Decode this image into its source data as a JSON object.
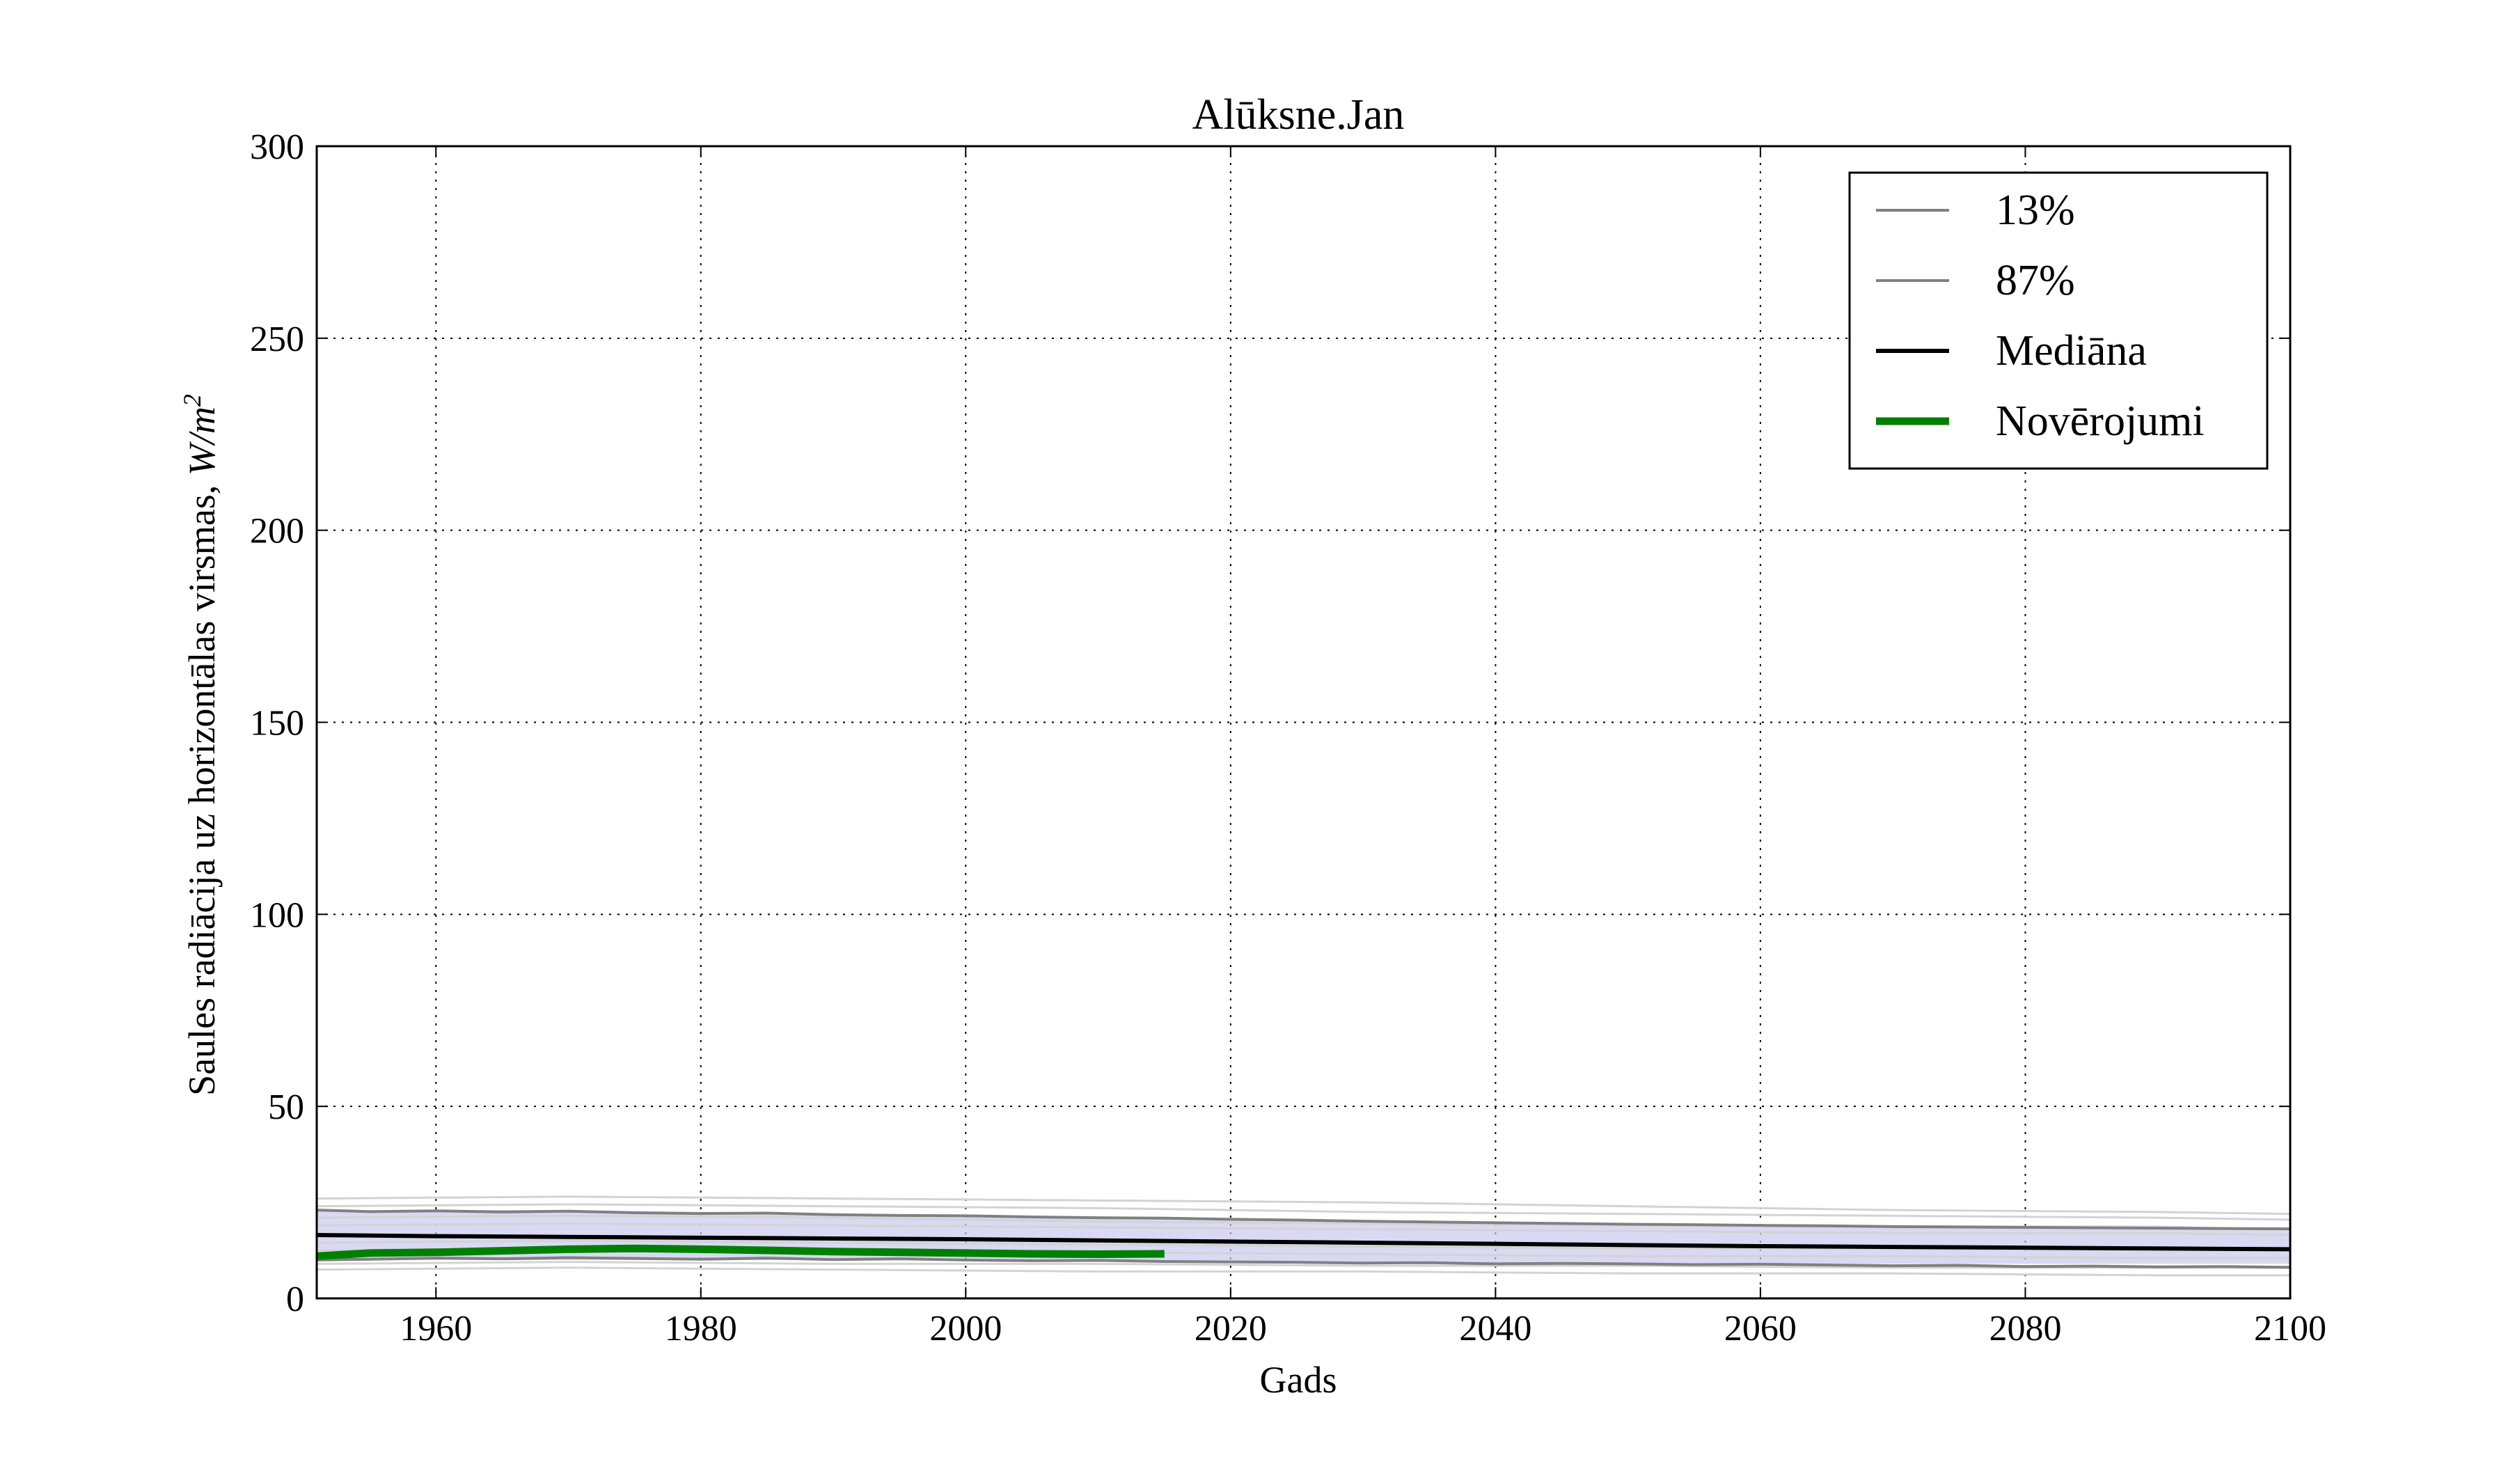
{
  "chart_data": {
    "type": "line",
    "title": "Alūksne.Jan",
    "xlabel": "Gads",
    "ylabel": "Saules radiācija uz horizontālas virsmas, ",
    "ylabel_unit": "W/m",
    "ylabel_unit_exp": "2",
    "xlim": [
      1951,
      2100
    ],
    "ylim": [
      0,
      300
    ],
    "xticks": [
      1960,
      1980,
      2000,
      2020,
      2040,
      2060,
      2080,
      2100
    ],
    "yticks": [
      0,
      50,
      100,
      150,
      200,
      250,
      300
    ],
    "grid": true,
    "legend_position": "top-right",
    "band": {
      "color": "#c9c9ef",
      "x": [
        1951,
        1970,
        1990,
        2010,
        2030,
        2050,
        2070,
        2090,
        2100
      ],
      "lower": [
        10,
        10,
        10,
        10,
        9,
        9,
        9,
        9,
        9
      ],
      "upper": [
        23,
        23,
        22,
        21,
        20,
        19,
        19,
        19,
        18
      ]
    },
    "ensemble_lines": {
      "color": "#d3d3d3",
      "x": [
        1951,
        1970,
        1990,
        2010,
        2030,
        2050,
        2070,
        2090,
        2100
      ],
      "lines": [
        [
          26,
          26.5,
          26,
          25.5,
          25,
          24,
          23,
          22.5,
          22
        ],
        [
          24,
          24.5,
          24,
          23.5,
          22.5,
          22,
          21.5,
          21,
          20.5
        ],
        [
          21,
          21.5,
          21,
          20,
          19.5,
          19,
          18.5,
          18,
          18
        ],
        [
          19,
          19.5,
          19,
          18.5,
          18,
          17.5,
          17,
          17,
          16.5
        ],
        [
          14.5,
          15,
          14.5,
          14,
          13.5,
          13,
          13,
          12.5,
          12.5
        ],
        [
          12.5,
          12.5,
          12,
          12,
          11.5,
          11,
          11,
          10.5,
          10.5
        ],
        [
          9,
          9.5,
          9,
          9,
          8.5,
          8.5,
          8,
          8,
          8
        ],
        [
          7.5,
          8,
          7.5,
          7,
          7,
          6.5,
          6.5,
          6,
          6
        ]
      ]
    },
    "series": [
      {
        "name": "13%",
        "color": "#808080",
        "x": [
          1951,
          1955,
          1960,
          1965,
          1970,
          1975,
          1980,
          1985,
          1990,
          1995,
          2000,
          2005,
          2010,
          2015,
          2020,
          2025,
          2030,
          2035,
          2040,
          2045,
          2050,
          2055,
          2060,
          2065,
          2070,
          2075,
          2080,
          2085,
          2090,
          2095,
          2100
        ],
        "values": [
          10,
          10.2,
          10.5,
          10.3,
          10.6,
          10.4,
          10.2,
          10.5,
          10.1,
          10.3,
          10.0,
          9.8,
          9.9,
          9.6,
          9.5,
          9.4,
          9.2,
          9.3,
          9.0,
          9.1,
          9.0,
          8.8,
          8.9,
          8.7,
          8.5,
          8.6,
          8.3,
          8.4,
          8.2,
          8.3,
          8.1
        ]
      },
      {
        "name": "87%",
        "color": "#808080",
        "x": [
          1951,
          1955,
          1960,
          1965,
          1970,
          1975,
          1980,
          1985,
          1990,
          1995,
          2000,
          2005,
          2010,
          2015,
          2020,
          2025,
          2030,
          2035,
          2040,
          2045,
          2050,
          2055,
          2060,
          2065,
          2070,
          2075,
          2080,
          2085,
          2090,
          2095,
          2100
        ],
        "values": [
          23,
          22.6,
          22.8,
          22.5,
          22.7,
          22.3,
          22.1,
          22.2,
          21.8,
          21.6,
          21.5,
          21.2,
          21.0,
          20.9,
          20.6,
          20.4,
          20.1,
          19.9,
          19.7,
          19.5,
          19.3,
          19.2,
          19.0,
          18.9,
          18.7,
          18.6,
          18.5,
          18.4,
          18.3,
          18.2,
          18.1
        ]
      },
      {
        "name": "Mediāna",
        "color": "#000000",
        "x": [
          1951,
          1960,
          1970,
          1980,
          1990,
          2000,
          2010,
          2020,
          2030,
          2040,
          2050,
          2060,
          2070,
          2080,
          2090,
          2100
        ],
        "values": [
          16.5,
          16.2,
          16.0,
          15.8,
          15.6,
          15.4,
          15.1,
          14.8,
          14.5,
          14.2,
          13.9,
          13.6,
          13.4,
          13.2,
          13.0,
          12.8
        ]
      },
      {
        "name": "Novērojumi",
        "color": "#008000",
        "x": [
          1951,
          1955,
          1960,
          1965,
          1970,
          1975,
          1980,
          1985,
          1990,
          1995,
          2000,
          2005,
          2010,
          2015
        ],
        "values": [
          11.0,
          11.8,
          12.0,
          12.4,
          12.8,
          13.0,
          12.8,
          12.5,
          12.2,
          12.0,
          11.8,
          11.6,
          11.5,
          11.6
        ]
      }
    ]
  }
}
